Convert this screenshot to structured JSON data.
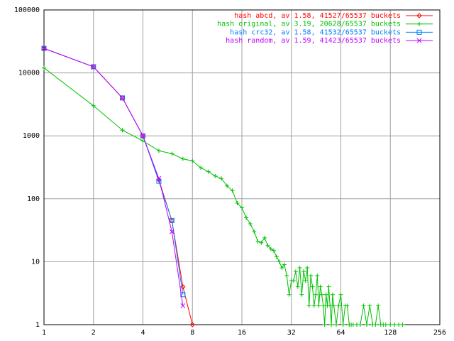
{
  "chart_data": {
    "type": "line",
    "xscale": "log",
    "yscale": "log",
    "grid": true,
    "legend": "top-right",
    "xlim": [
      1,
      256
    ],
    "xticks": [
      1,
      2,
      4,
      8,
      16,
      32,
      64,
      128,
      256
    ],
    "ylim": [
      1,
      100000
    ],
    "yticks": [
      1,
      10,
      100,
      1000,
      10000,
      100000
    ],
    "series": [
      {
        "name": "hash abcd, av 1.58, 41527/65537 buckets",
        "color": "#ff0000",
        "marker": "diamond",
        "x": [
          1,
          2,
          3,
          4,
          5,
          6,
          7,
          8
        ],
        "values": [
          24500,
          12500,
          4000,
          1000,
          200,
          45,
          4,
          1
        ]
      },
      {
        "name": "hash original, av 3.19, 20628/65537 buckets",
        "color": "#00c000",
        "marker": "plus",
        "x": [
          1,
          2,
          3,
          4,
          5,
          6,
          7,
          8,
          9,
          10,
          11,
          12,
          13,
          14,
          15,
          16,
          17,
          18,
          19,
          20,
          21,
          22,
          23,
          24,
          25,
          26,
          27,
          28,
          29,
          30,
          31,
          32,
          33,
          34,
          35,
          36,
          37,
          38,
          39,
          40,
          41,
          42,
          43,
          44,
          45,
          46,
          47,
          48,
          49,
          50,
          51,
          52,
          53,
          54,
          55,
          56,
          57,
          58,
          60,
          62,
          64,
          66,
          68,
          70,
          72,
          74,
          76,
          80,
          84,
          88,
          92,
          96,
          100,
          104,
          108,
          112,
          116,
          120,
          128,
          136,
          144,
          152
        ],
        "values": [
          12000,
          3000,
          1230,
          830,
          580,
          520,
          430,
          400,
          310,
          270,
          230,
          210,
          160,
          135,
          85,
          72,
          50,
          40,
          30,
          21,
          20,
          24,
          18,
          16,
          15,
          12,
          10,
          8,
          9,
          6,
          3,
          5,
          5,
          7,
          4,
          8,
          3,
          7,
          5,
          8,
          2,
          6,
          4,
          2,
          3,
          6,
          2,
          4,
          3,
          2,
          1,
          3,
          2,
          4,
          2,
          1,
          3,
          2,
          1,
          2,
          3,
          1,
          2,
          2,
          1,
          1,
          1,
          1,
          1,
          2,
          1,
          2,
          1,
          1,
          2,
          1,
          1,
          1,
          1,
          1,
          1,
          1
        ]
      },
      {
        "name": "hash crc32, av 1.58, 41532/65537 buckets",
        "color": "#0080ff",
        "marker": "square",
        "x": [
          1,
          2,
          3,
          4,
          5,
          6,
          7
        ],
        "values": [
          24500,
          12500,
          4000,
          1000,
          190,
          45,
          3
        ]
      },
      {
        "name": "hash random, av 1.59, 41423/65537 buckets",
        "color": "#c000ff",
        "marker": "cross",
        "x": [
          1,
          2,
          3,
          4,
          5,
          6,
          7
        ],
        "values": [
          24500,
          12500,
          4000,
          1000,
          210,
          30,
          2
        ]
      }
    ]
  }
}
